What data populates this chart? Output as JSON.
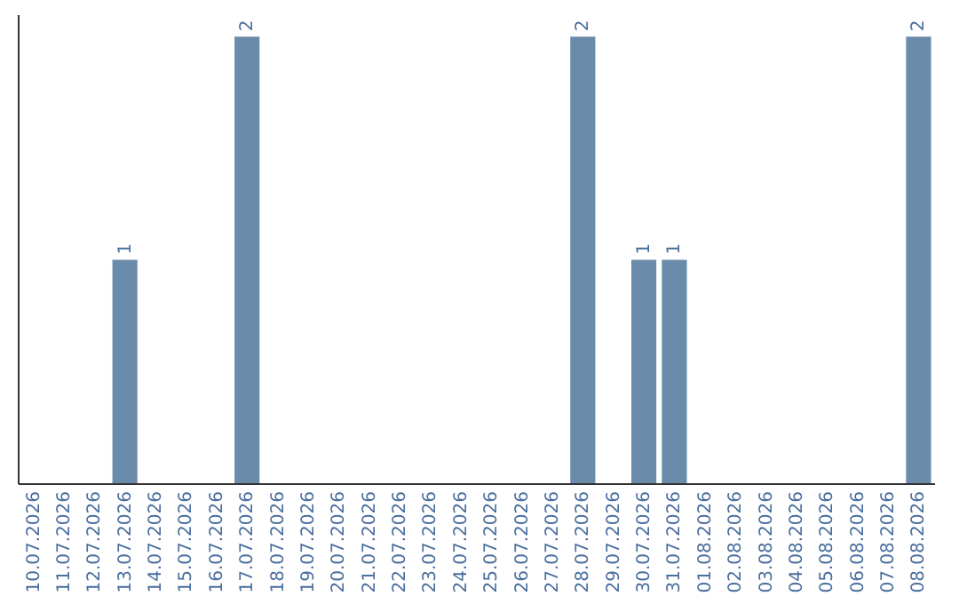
{
  "chart_data": {
    "type": "bar",
    "categories": [
      "10.07.2026",
      "11.07.2026",
      "12.07.2026",
      "13.07.2026",
      "14.07.2026",
      "15.07.2026",
      "16.07.2026",
      "17.07.2026",
      "18.07.2026",
      "19.07.2026",
      "20.07.2026",
      "21.07.2026",
      "22.07.2026",
      "23.07.2026",
      "24.07.2026",
      "25.07.2026",
      "26.07.2026",
      "27.07.2026",
      "28.07.2026",
      "29.07.2026",
      "30.07.2026",
      "31.07.2026",
      "01.08.2026",
      "02.08.2026",
      "03.08.2026",
      "04.08.2026",
      "05.08.2026",
      "06.08.2026",
      "07.08.2026",
      "08.08.2026"
    ],
    "values": [
      0,
      0,
      0,
      1,
      0,
      0,
      0,
      2,
      0,
      0,
      0,
      0,
      0,
      0,
      0,
      0,
      0,
      0,
      2,
      0,
      1,
      1,
      0,
      0,
      0,
      0,
      0,
      0,
      0,
      2
    ],
    "value_labels": [
      null,
      null,
      null,
      "1",
      null,
      null,
      null,
      "2",
      null,
      null,
      null,
      null,
      null,
      null,
      null,
      null,
      null,
      null,
      "2",
      null,
      "1",
      "1",
      null,
      null,
      null,
      null,
      null,
      null,
      null,
      "2"
    ],
    "color": "#6a8caa",
    "ylim": [
      0,
      2.1
    ],
    "tick_labels": "x",
    "grid": false
  }
}
